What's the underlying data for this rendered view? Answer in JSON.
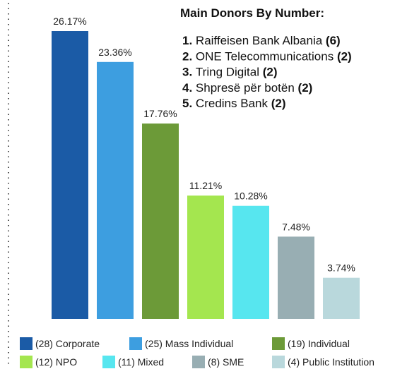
{
  "chart_data": {
    "type": "bar",
    "categories": [
      "(28) Corporate",
      "(25) Mass Individual",
      "(19) Individual",
      "(12) NPO",
      "(11) Mixed",
      "(8) SME",
      "(4) Public Institution"
    ],
    "values": [
      26.17,
      23.36,
      17.76,
      11.21,
      10.28,
      7.48,
      3.74
    ],
    "value_labels": [
      "26.17%",
      "23.36%",
      "17.76%",
      "11.21%",
      "10.28%",
      "7.48%",
      "3.74%"
    ],
    "colors": [
      "#1b5ba6",
      "#3d9ee0",
      "#6c9a38",
      "#a4e64f",
      "#57e6ef",
      "#98aeb3",
      "#b9d8dc"
    ],
    "legend": "bottom",
    "annotation": {
      "title": "Main Donors By Number:",
      "items": [
        {
          "rank": "1.",
          "name": "Raiffeisen Bank Albania",
          "count": "(6)"
        },
        {
          "rank": "2.",
          "name": "ONE Telecommunications",
          "count": "(2)"
        },
        {
          "rank": "3.",
          "name": "Tring Digital",
          "count": "(2)"
        },
        {
          "rank": "4.",
          "name": "Shpresë për botën",
          "count": "(2)"
        },
        {
          "rank": "5.",
          "name": "Credins Bank",
          "count": "(2)"
        }
      ]
    }
  }
}
